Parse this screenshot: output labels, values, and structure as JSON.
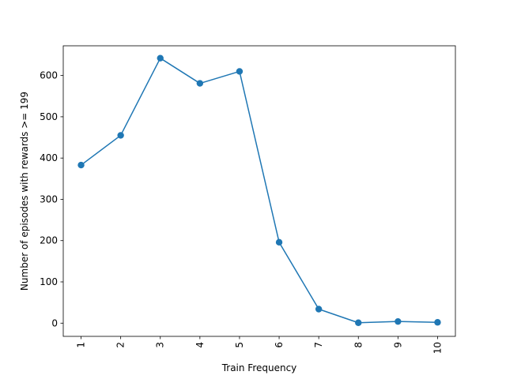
{
  "chart_data": {
    "type": "line",
    "title": "",
    "xlabel": "Train Frequency",
    "ylabel": "Number of episodes with rewards >= 199",
    "x": [
      1,
      2,
      3,
      4,
      5,
      6,
      7,
      8,
      9,
      10
    ],
    "xticks": [
      "1",
      "2",
      "3",
      "4",
      "5",
      "6",
      "7",
      "8",
      "9",
      "10"
    ],
    "xtick_rotation": 90,
    "xlim": [
      0.55,
      10.45
    ],
    "yticks": [
      0,
      100,
      200,
      300,
      400,
      500,
      600
    ],
    "ylim": [
      -32,
      672
    ],
    "grid": false,
    "series": [
      {
        "values": [
          383,
          455,
          642,
          581,
          610,
          196,
          34,
          1,
          4,
          2
        ],
        "color": "#1f77b4",
        "marker": "circle"
      }
    ]
  }
}
